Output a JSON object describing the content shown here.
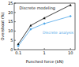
{
  "chart_data": {
    "type": "line",
    "x_label": "Punched force (kN)",
    "y_label": "Overshoot (%)",
    "log": "x",
    "xlim": [
      0.07,
      15
    ],
    "xticks": [
      0.1,
      1,
      10
    ],
    "ylim": [
      0,
      25
    ],
    "yticks": [
      0,
      5,
      10,
      15,
      20,
      25
    ],
    "series": [
      {
        "name": "Discrete modeling",
        "color": "#111111",
        "marker": "triangle",
        "x": [
          0.1,
          0.3,
          1,
          10
        ],
        "values": [
          3,
          13,
          17,
          24
        ]
      },
      {
        "name": "Discrete analysis",
        "color": "#4da6e8",
        "marker": "diamond",
        "x": [
          0.1,
          0.3,
          1,
          10
        ],
        "values": [
          2,
          11,
          14,
          18
        ]
      }
    ]
  }
}
